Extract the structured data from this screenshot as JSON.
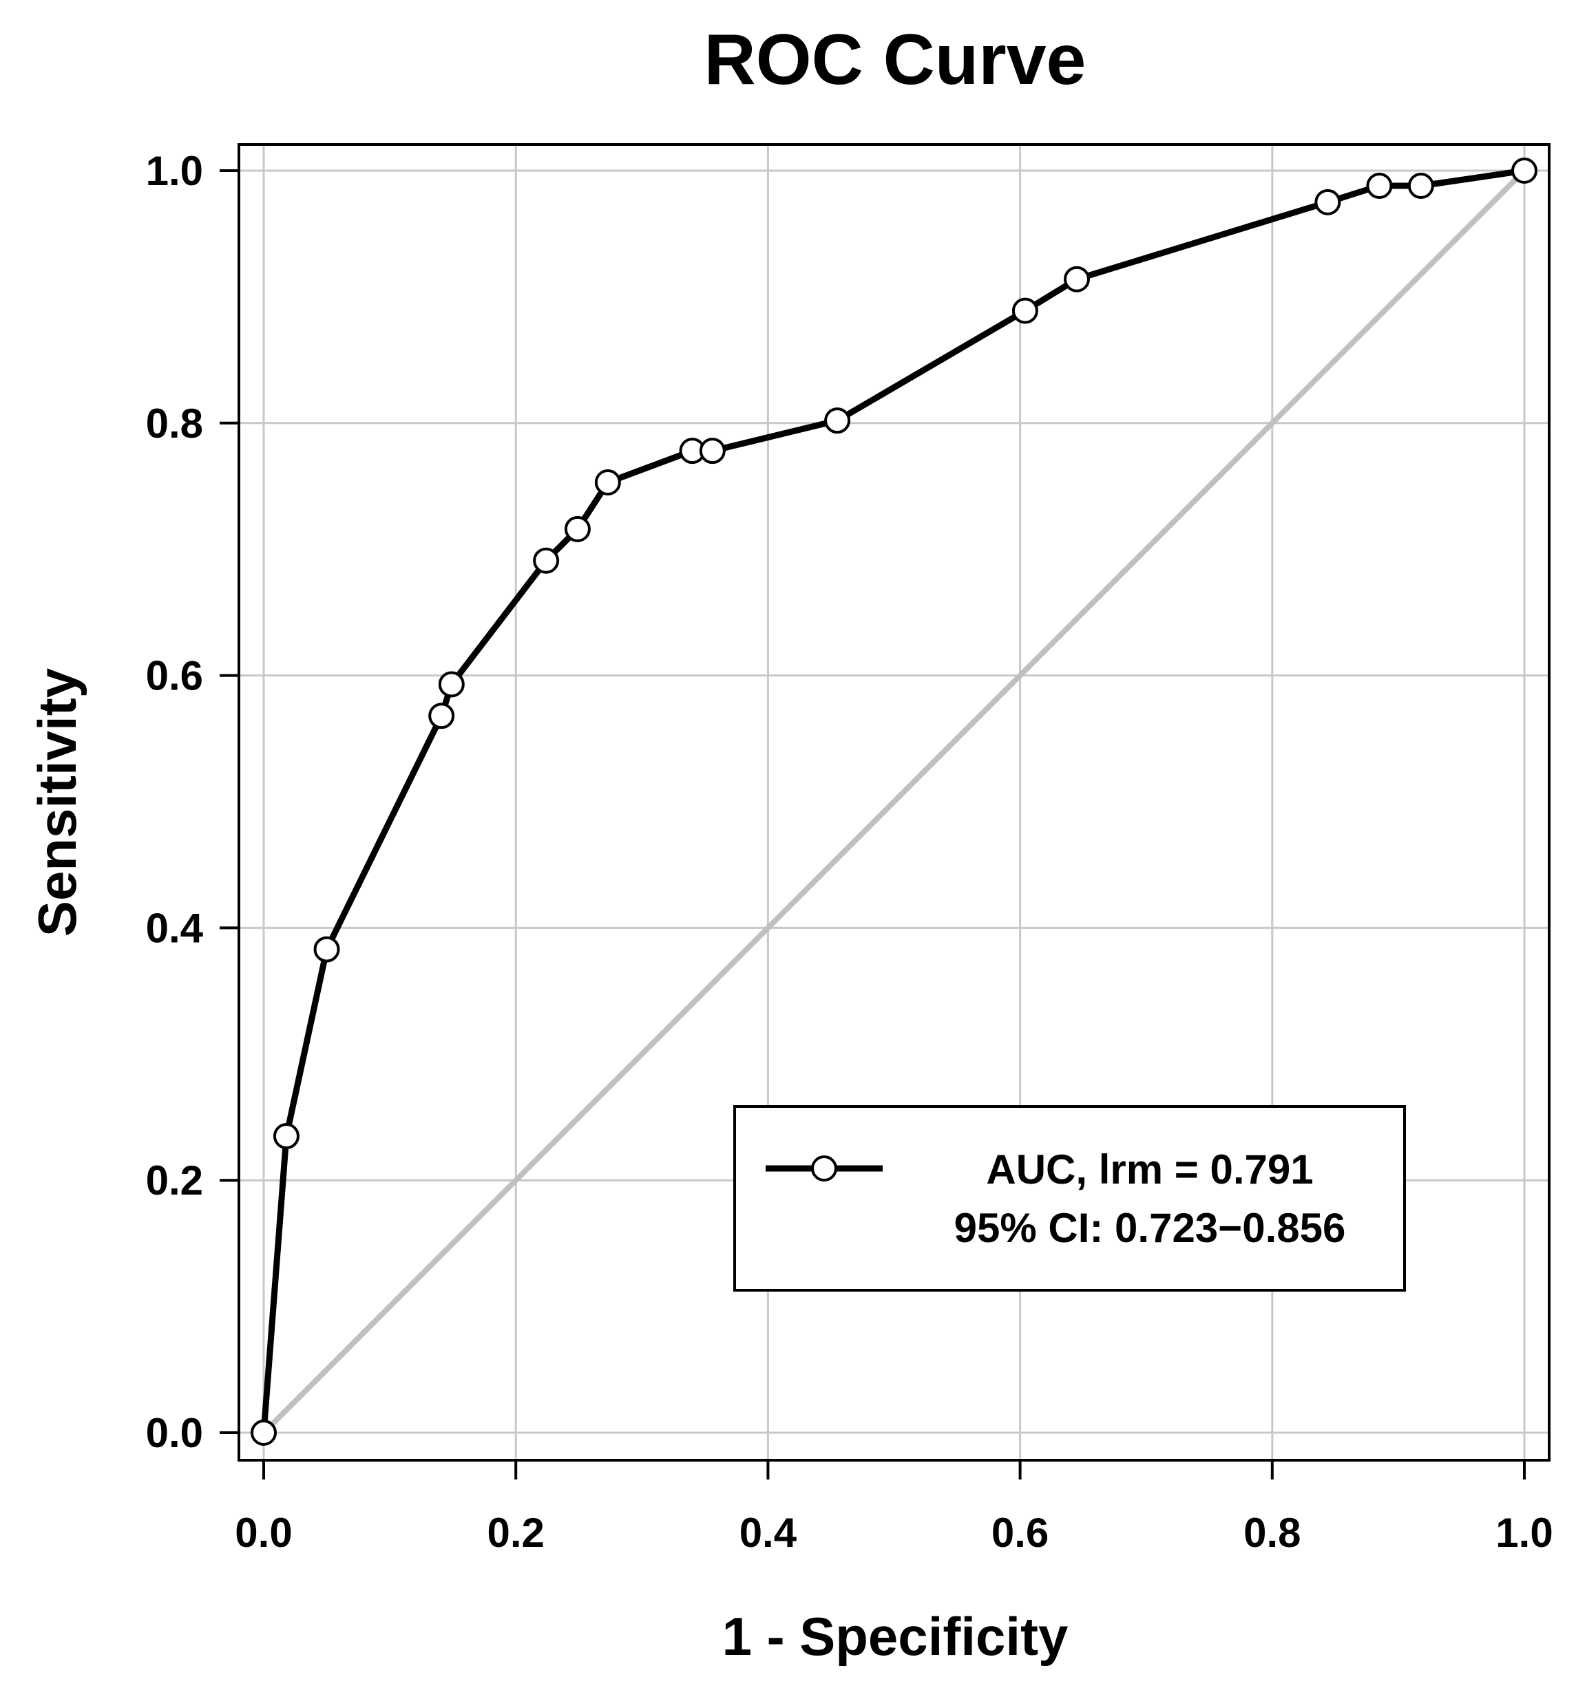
{
  "chart_data": {
    "type": "line",
    "title": "ROC Curve",
    "xlabel": "1 - Specificity",
    "ylabel": "Sensitivity",
    "xlim": [
      0.0,
      1.0
    ],
    "ylim": [
      0.0,
      1.0
    ],
    "grid": true,
    "x_ticks": [
      0.0,
      0.2,
      0.4,
      0.6,
      0.8,
      1.0
    ],
    "y_ticks": [
      0.0,
      0.2,
      0.4,
      0.6,
      0.8,
      1.0
    ],
    "x_tick_labels": [
      "0.0",
      "0.2",
      "0.4",
      "0.6",
      "0.8",
      "1.0"
    ],
    "y_tick_labels": [
      "0.0",
      "0.2",
      "0.4",
      "0.6",
      "0.8",
      "1.0"
    ],
    "series": [
      {
        "name": "AUC, lrm = 0.791",
        "color": "#000000",
        "marker": "open-circle",
        "x": [
          0.0,
          0.018,
          0.05,
          0.141,
          0.149,
          0.224,
          0.249,
          0.273,
          0.34,
          0.356,
          0.455,
          0.604,
          0.645,
          0.844,
          0.885,
          0.918,
          1.0
        ],
        "y": [
          0.0,
          0.235,
          0.383,
          0.568,
          0.593,
          0.691,
          0.716,
          0.753,
          0.778,
          0.778,
          0.802,
          0.889,
          0.914,
          0.975,
          0.988,
          0.988,
          1.0
        ]
      }
    ],
    "reference_line": {
      "x": [
        0.0,
        1.0
      ],
      "y": [
        0.0,
        1.0
      ],
      "color": "#c0c0c0"
    },
    "legend": {
      "position": "bottom-right",
      "line1": "AUC, lrm = 0.791",
      "line2": "95% CI: 0.723−0.856"
    }
  }
}
